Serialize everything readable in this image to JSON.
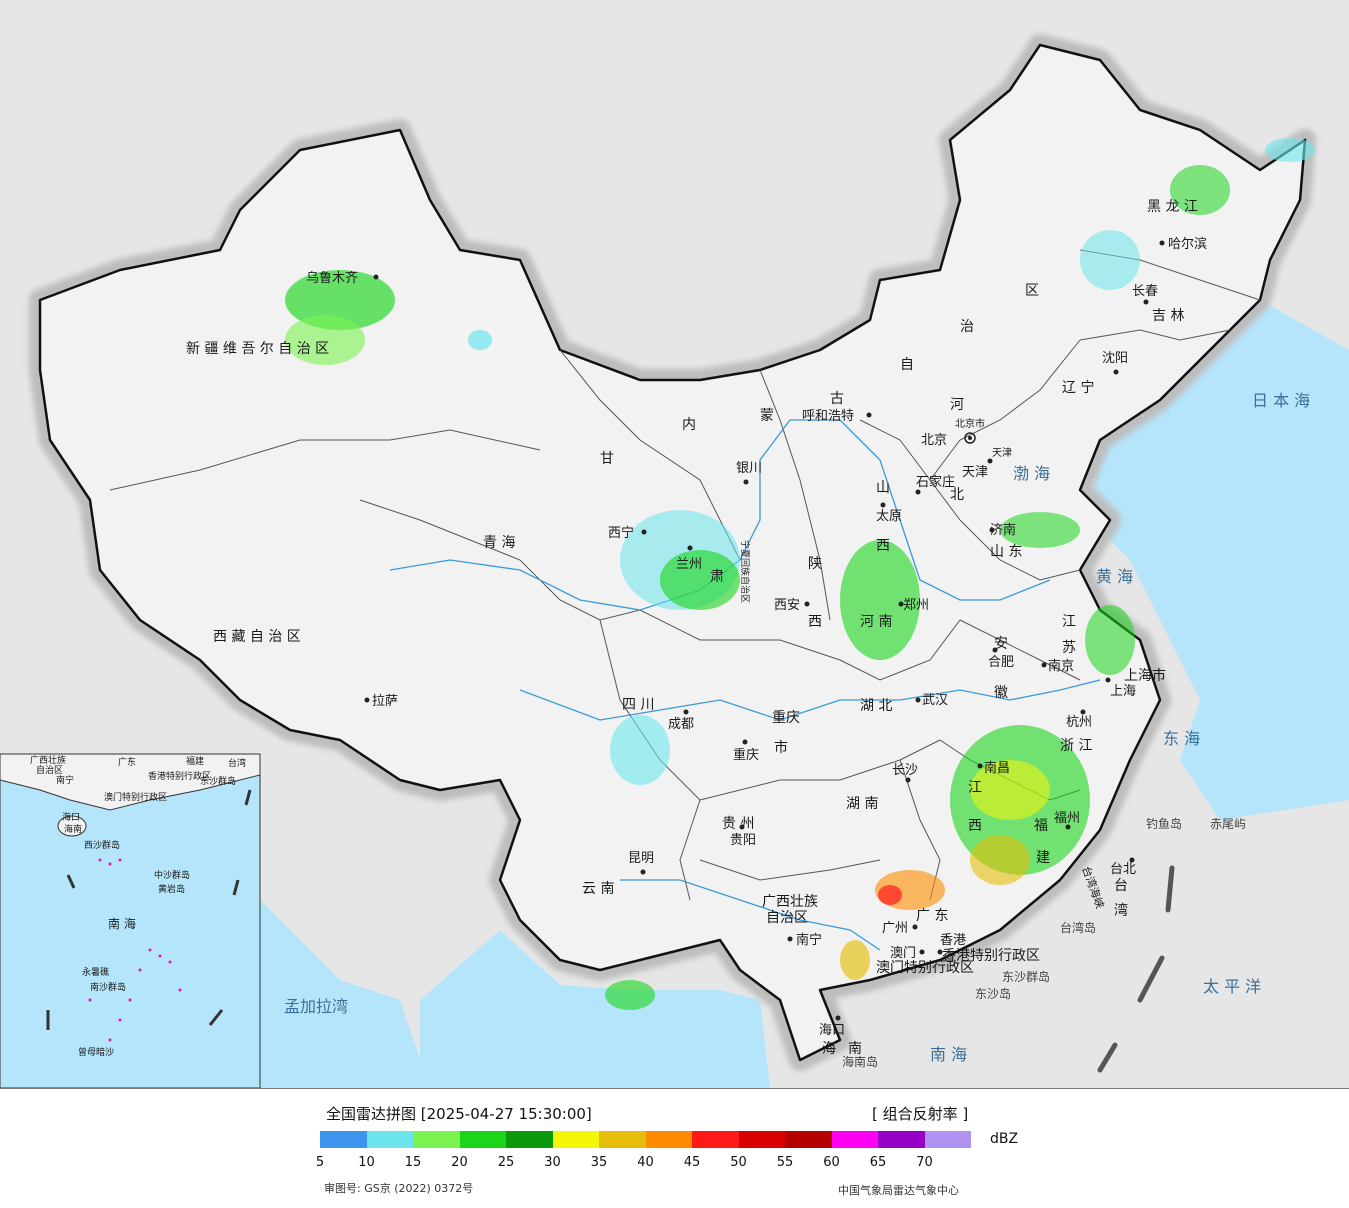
{
  "title_bar": {
    "title": "全国雷达拼图 [2025-04-27 15:30:00]",
    "product": "[ 组合反射率 ]"
  },
  "provinces": [
    {
      "name": "新 疆 维 吾 尔 自 治 区"
    },
    {
      "name": "西 藏 自 治 区"
    },
    {
      "name": "青 海"
    },
    {
      "name": "甘"
    },
    {
      "name": "肃"
    },
    {
      "name": "四 川"
    },
    {
      "name": "云 南"
    },
    {
      "name": "内"
    },
    {
      "name": "蒙"
    },
    {
      "name": "古"
    },
    {
      "name": "自"
    },
    {
      "name": "治"
    },
    {
      "name": "区"
    },
    {
      "name": "黑 龙 江"
    },
    {
      "name": "吉 林"
    },
    {
      "name": "辽 宁"
    },
    {
      "name": "河"
    },
    {
      "name": "北"
    },
    {
      "name": "山"
    },
    {
      "name": "西"
    },
    {
      "name": "山 东"
    },
    {
      "name": "河 南"
    },
    {
      "name": "陕"
    },
    {
      "name": "西"
    },
    {
      "name": "湖 北"
    },
    {
      "name": "湖 南"
    },
    {
      "name": "重庆"
    },
    {
      "name": "市"
    },
    {
      "name": "贵 州"
    },
    {
      "name": "广西壮族"
    },
    {
      "name": "自治区"
    },
    {
      "name": "广 东"
    },
    {
      "name": "江"
    },
    {
      "name": "西"
    },
    {
      "name": "福"
    },
    {
      "name": "建"
    },
    {
      "name": "浙 江"
    },
    {
      "name": "安"
    },
    {
      "name": "徽"
    },
    {
      "name": "江"
    },
    {
      "name": "苏"
    },
    {
      "name": "上海市"
    },
    {
      "name": "台"
    },
    {
      "name": "湾"
    },
    {
      "name": "海"
    },
    {
      "name": "南"
    },
    {
      "name": "宁夏回族自治区"
    },
    {
      "name": "香港特别行政区"
    },
    {
      "name": "澳门特别行政区"
    },
    {
      "name": "北京市"
    },
    {
      "name": "天津"
    }
  ],
  "cities": [
    {
      "name": "乌鲁木齐"
    },
    {
      "name": "拉萨"
    },
    {
      "name": "西宁"
    },
    {
      "name": "兰州"
    },
    {
      "name": "成都"
    },
    {
      "name": "昆明"
    },
    {
      "name": "银川"
    },
    {
      "name": "呼和浩特"
    },
    {
      "name": "西安"
    },
    {
      "name": "重庆"
    },
    {
      "name": "贵阳"
    },
    {
      "name": "南宁"
    },
    {
      "name": "海口"
    },
    {
      "name": "海南岛"
    },
    {
      "name": "广州"
    },
    {
      "name": "澳门"
    },
    {
      "name": "香港"
    },
    {
      "name": "长沙"
    },
    {
      "name": "武汉"
    },
    {
      "name": "郑州"
    },
    {
      "name": "太原"
    },
    {
      "name": "石家庄"
    },
    {
      "name": "北京"
    },
    {
      "name": "天津"
    },
    {
      "name": "济南"
    },
    {
      "name": "合肥"
    },
    {
      "name": "南京"
    },
    {
      "name": "上海"
    },
    {
      "name": "杭州"
    },
    {
      "name": "南昌"
    },
    {
      "name": "福州"
    },
    {
      "name": "台北"
    },
    {
      "name": "沈阳"
    },
    {
      "name": "长春"
    },
    {
      "name": "哈尔滨"
    }
  ],
  "seas": [
    {
      "name": "日 本 海"
    },
    {
      "name": "渤 海"
    },
    {
      "name": "黄 海"
    },
    {
      "name": "东 海"
    },
    {
      "name": "太 平 洋"
    },
    {
      "name": "南 海"
    },
    {
      "name": "孟加拉湾"
    },
    {
      "name": "台湾海峡"
    }
  ],
  "islands": [
    {
      "name": "钓鱼岛"
    },
    {
      "name": "赤尾屿"
    },
    {
      "name": "台湾岛"
    },
    {
      "name": "东沙群岛"
    },
    {
      "name": "东沙岛"
    }
  ],
  "inset": {
    "labels": [
      {
        "name": "广西壮族"
      },
      {
        "name": "自治区"
      },
      {
        "name": "南宁"
      },
      {
        "name": "广东"
      },
      {
        "name": "福建"
      },
      {
        "name": "台湾"
      },
      {
        "name": "香港特别行政区"
      },
      {
        "name": "澳门特别行政区"
      },
      {
        "name": "东沙群岛"
      },
      {
        "name": "海口"
      },
      {
        "name": "海南"
      },
      {
        "name": "西沙群岛"
      },
      {
        "name": "中沙群岛"
      },
      {
        "name": "黄岩岛"
      },
      {
        "name": "南 海"
      },
      {
        "name": "南沙群岛"
      },
      {
        "name": "永暑礁"
      },
      {
        "name": "曾母暗沙"
      }
    ]
  },
  "legend": {
    "unit": "dBZ",
    "ticks": [
      "5",
      "10",
      "15",
      "20",
      "25",
      "30",
      "35",
      "40",
      "45",
      "50",
      "55",
      "60",
      "65",
      "70"
    ],
    "colors": [
      "#3d95f0",
      "#6ce6ec",
      "#7cf350",
      "#1bd51b",
      "#0a9a0a",
      "#f5f50a",
      "#e4be0a",
      "#ff8c00",
      "#ff1a1a",
      "#d80000",
      "#b40000",
      "#ff00f5",
      "#9400c8",
      "#b093f0"
    ],
    "approval": "审图号: GS京 (2022) 0372号",
    "source": "中国气象局雷达气象中心"
  }
}
